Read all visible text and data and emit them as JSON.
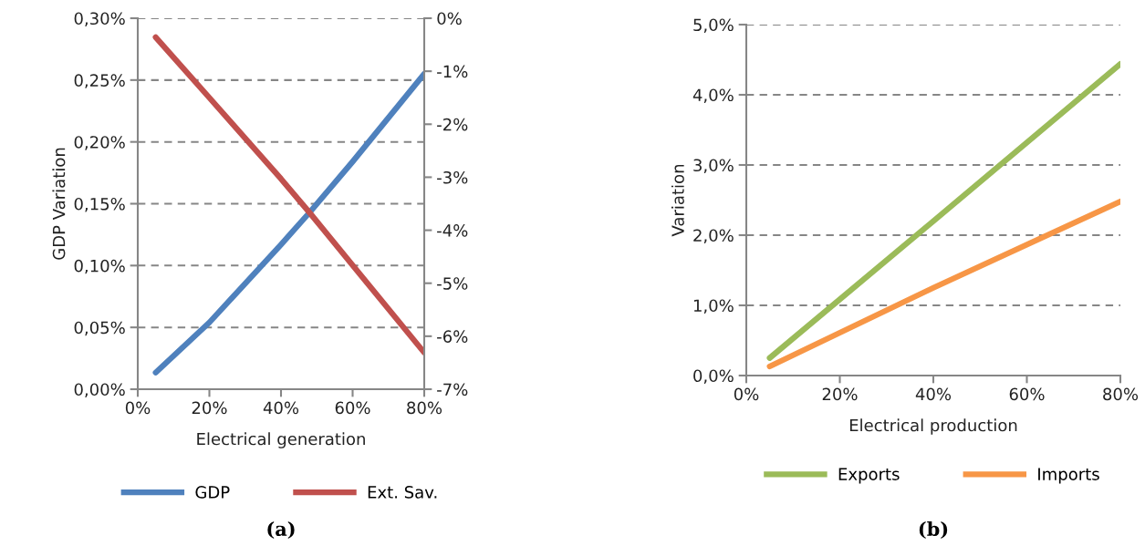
{
  "chart_data": [
    {
      "type": "line",
      "xlabel": "Electrical generation",
      "ylabel": "GDP Variation",
      "x": [
        5,
        20,
        40,
        48,
        60,
        80
      ],
      "series": [
        {
          "name": "GDP",
          "color": "#4f81bd",
          "values": [
            0.0135,
            0.054,
            0.117,
            0.143,
            0.184,
            0.255
          ]
        },
        {
          "name": "Ext. Sav.",
          "color": "#c0504d",
          "axis": "y2",
          "values": [
            -0.36,
            -1.5,
            -3.03,
            -3.67,
            -4.66,
            -6.31
          ]
        }
      ],
      "xlim": [
        0,
        80
      ],
      "xticks": [
        {
          "value": 0,
          "label": "0%"
        },
        {
          "value": 20,
          "label": "20%"
        },
        {
          "value": 40,
          "label": "40%"
        },
        {
          "value": 60,
          "label": "60%"
        },
        {
          "value": 80,
          "label": "80%"
        }
      ],
      "ylim": [
        0,
        0.3
      ],
      "yticks": [
        {
          "value": 0,
          "label": "0,00%"
        },
        {
          "value": 0.05,
          "label": "0,05%"
        },
        {
          "value": 0.1,
          "label": "0,10%"
        },
        {
          "value": 0.15,
          "label": "0,15%"
        },
        {
          "value": 0.2,
          "label": "0,20%"
        },
        {
          "value": 0.25,
          "label": "0,25%"
        },
        {
          "value": 0.3,
          "label": "0,30%"
        }
      ],
      "y2lim": [
        -7,
        0
      ],
      "y2ticks": [
        {
          "value": -7,
          "label": "-7%"
        },
        {
          "value": -6,
          "label": "-6%"
        },
        {
          "value": -5,
          "label": "-5%"
        },
        {
          "value": -4,
          "label": "-4%"
        },
        {
          "value": -3,
          "label": "-3%"
        },
        {
          "value": -2,
          "label": "-2%"
        },
        {
          "value": -1,
          "label": "-1%"
        },
        {
          "value": 0,
          "label": "0%"
        }
      ],
      "grid": "y",
      "legend": "bottom",
      "line_style": "solid",
      "annotations": [
        "(a)"
      ]
    },
    {
      "type": "line",
      "xlabel": "Electrical production",
      "ylabel": "Variation",
      "x": [
        5,
        40,
        80
      ],
      "series": [
        {
          "name": "Exports",
          "color": "#9bbb59",
          "values": [
            0.25,
            2.2,
            4.44
          ]
        },
        {
          "name": "Imports",
          "color": "#f79646",
          "values": [
            0.13,
            1.25,
            2.48
          ]
        }
      ],
      "xlim": [
        0,
        80
      ],
      "xticks": [
        {
          "value": 0,
          "label": "0%"
        },
        {
          "value": 20,
          "label": "20%"
        },
        {
          "value": 40,
          "label": "40%"
        },
        {
          "value": 60,
          "label": "60%"
        },
        {
          "value": 80,
          "label": "80%"
        }
      ],
      "ylim": [
        0,
        5
      ],
      "yticks": [
        {
          "value": 0,
          "label": "0,0%"
        },
        {
          "value": 1,
          "label": "1,0%"
        },
        {
          "value": 2,
          "label": "2,0%"
        },
        {
          "value": 3,
          "label": "3,0%"
        },
        {
          "value": 4,
          "label": "4,0%"
        },
        {
          "value": 5,
          "label": "5,0%"
        }
      ],
      "grid": "y",
      "legend": "bottom",
      "line_style": "solid",
      "annotations": [
        "(b)"
      ]
    }
  ]
}
